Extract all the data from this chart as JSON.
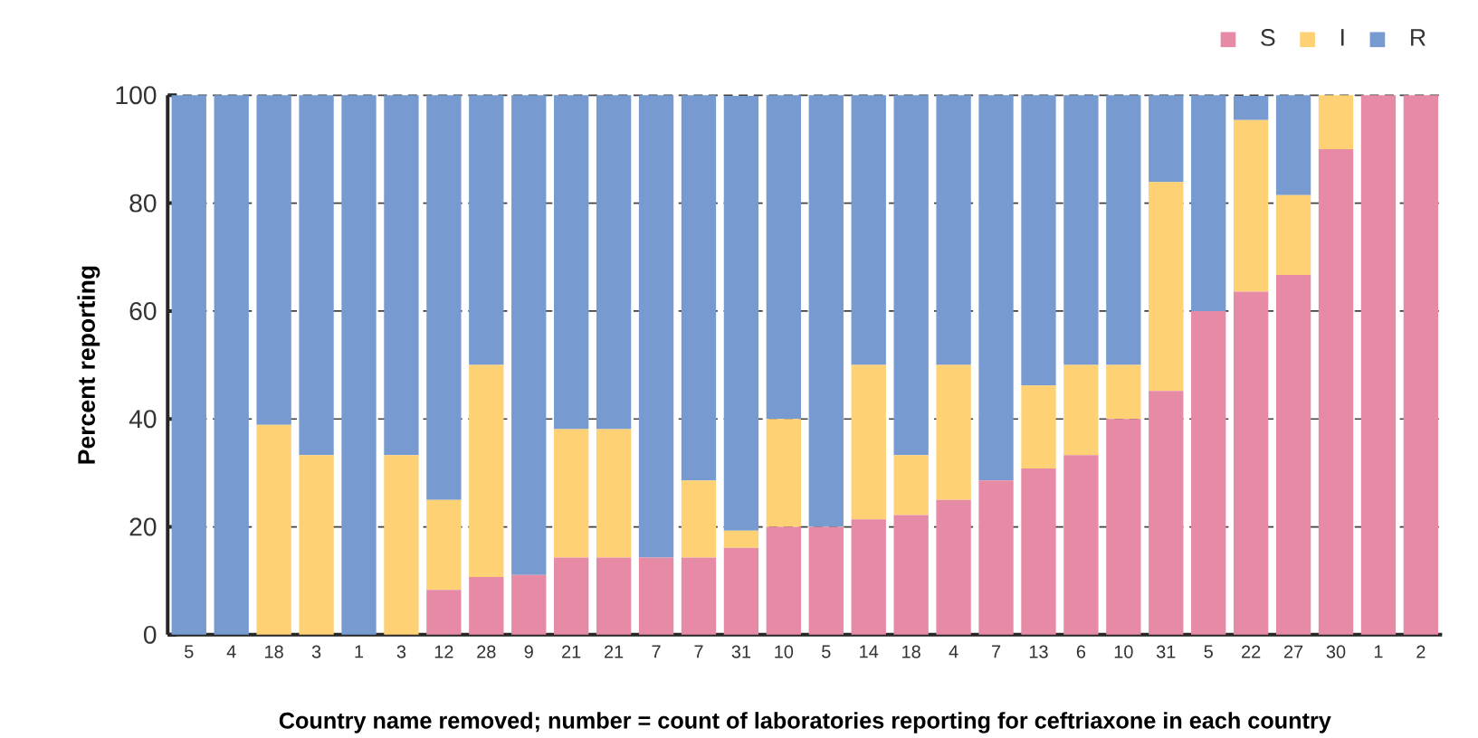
{
  "chart_data": {
    "type": "bar",
    "stacked": true,
    "ylabel": "Percent reporting",
    "xlabel": "Country name removed; number = count of laboratories reporting for ceftriaxone in each country",
    "categories": [
      "5",
      "4",
      "18",
      "3",
      "1",
      "3",
      "12",
      "28",
      "9",
      "21",
      "21",
      "7",
      "7",
      "31",
      "10",
      "5",
      "14",
      "18",
      "4",
      "7",
      "13",
      "6",
      "10",
      "31",
      "5",
      "22",
      "27",
      "30",
      "1",
      "2"
    ],
    "series": [
      {
        "name": "S",
        "color": "#e68aa6",
        "values": [
          0,
          0,
          0,
          0,
          0,
          0,
          8.3,
          10.7,
          11.1,
          14.3,
          14.3,
          14.3,
          14.3,
          16.1,
          20,
          20,
          21.4,
          22.2,
          25,
          28.6,
          30.8,
          33.3,
          40,
          45.2,
          60,
          63.6,
          66.7,
          90,
          100,
          100
        ]
      },
      {
        "name": "I",
        "color": "#fdd174",
        "values": [
          0,
          0,
          38.9,
          33.3,
          0,
          33.3,
          16.7,
          39.3,
          0,
          23.8,
          23.8,
          0,
          14.3,
          3.2,
          20,
          0,
          28.6,
          11.1,
          25,
          0,
          15.4,
          16.7,
          10,
          38.7,
          0,
          31.8,
          14.8,
          10,
          0,
          0
        ]
      },
      {
        "name": "R",
        "color": "#779bd0",
        "values": [
          100,
          100,
          61.1,
          66.7,
          100,
          66.7,
          75,
          50,
          88.9,
          61.9,
          61.9,
          85.7,
          71.4,
          80.6,
          60,
          80,
          50,
          66.7,
          50,
          71.4,
          53.8,
          50,
          50,
          16.1,
          40,
          4.5,
          18.5,
          0,
          0,
          0
        ]
      }
    ],
    "ylim": [
      0,
      100
    ],
    "yticks": [
      0,
      20,
      40,
      60,
      80,
      100
    ],
    "grid": "y",
    "legend": "top right"
  }
}
